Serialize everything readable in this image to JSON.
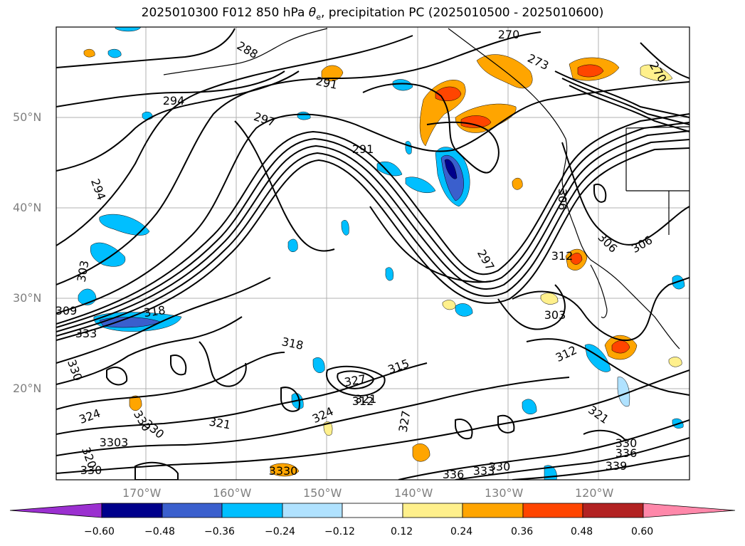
{
  "title": {
    "prefix": "2025010300 F012 850 hPa ",
    "theta_symbol": "θ",
    "theta_subscript": "e",
    "suffix": ", precipitation PC (2025010500 - 2025010600)"
  },
  "lat_labels": [
    "50°N",
    "40°N",
    "30°N",
    "20°N"
  ],
  "lon_labels": [
    "170°W",
    "160°W",
    "150°W",
    "140°W",
    "130°W",
    "120°W"
  ],
  "contour_labels": [
    "270",
    "273",
    "270",
    "288",
    "291",
    "294",
    "297",
    "291",
    "294",
    "303",
    "309",
    "318",
    "333",
    "330",
    "324",
    "330",
    "330",
    "3303",
    "320",
    "330",
    "3330",
    "321",
    "324",
    "318",
    "327",
    "321",
    "315",
    "312",
    "327",
    "336",
    "333",
    "330",
    "306",
    "306",
    "306",
    "297",
    "312",
    "303",
    "312",
    "321",
    "330",
    "336",
    "339"
  ],
  "colorbar": {
    "tick_labels": [
      "−0.60",
      "−0.48",
      "−0.36",
      "−0.24",
      "−0.12",
      "0.12",
      "0.24",
      "0.36",
      "0.48",
      "0.60"
    ],
    "colors": [
      "#9b30d0",
      "#00008b",
      "#3a5fcd",
      "#00bfff",
      "#b0e2ff",
      "#ffffff",
      "#fff08c",
      "#ffa500",
      "#ff4500",
      "#b22222",
      "#ff88aa"
    ]
  }
}
